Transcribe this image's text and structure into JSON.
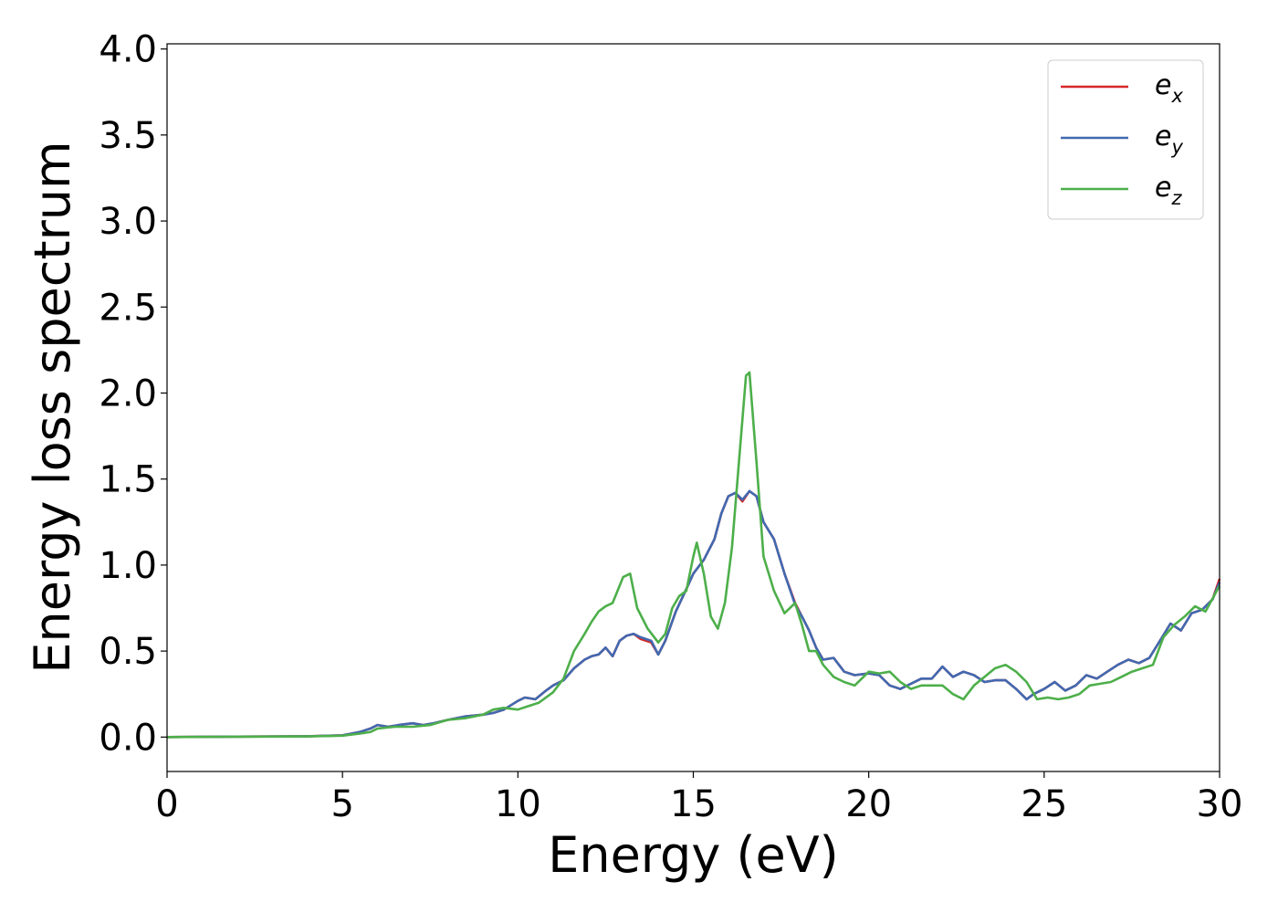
{
  "chart_data": {
    "type": "line",
    "xlabel": "Energy (eV)",
    "ylabel": "Energy loss spectrum",
    "xlim": [
      0,
      30
    ],
    "ylim": [
      -0.2,
      4.03
    ],
    "xticks": [
      "0",
      "5",
      "10",
      "15",
      "20",
      "25",
      "30"
    ],
    "yticks": [
      "0.0",
      "0.5",
      "1.0",
      "1.5",
      "2.0",
      "2.5",
      "3.0",
      "3.5",
      "4.0"
    ],
    "grid": false,
    "legend_position": "top-right",
    "series": [
      {
        "name": "e_x",
        "legend_base": "e",
        "legend_sub": "x",
        "color": "#d62728",
        "x": [
          0,
          2,
          4,
          5,
          5.5,
          5.8,
          6,
          6.3,
          6.6,
          7,
          7.3,
          7.6,
          8,
          8.5,
          9,
          9.3,
          9.6,
          10,
          10.2,
          10.5,
          10.8,
          11,
          11.3,
          11.6,
          11.9,
          12.1,
          12.3,
          12.5,
          12.7,
          12.9,
          13.1,
          13.3,
          13.5,
          13.8,
          14.0,
          14.2,
          14.5,
          14.8,
          15.0,
          15.3,
          15.6,
          15.8,
          16.0,
          16.2,
          16.4,
          16.6,
          16.8,
          17.0,
          17.3,
          17.6,
          17.9,
          18.1,
          18.3,
          18.5,
          18.7,
          19.0,
          19.3,
          19.6,
          20.0,
          20.3,
          20.6,
          20.9,
          21.2,
          21.5,
          21.8,
          22.1,
          22.4,
          22.7,
          23.0,
          23.3,
          23.6,
          23.9,
          24.2,
          24.5,
          24.7,
          25.0,
          25.3,
          25.6,
          25.9,
          26.2,
          26.5,
          26.8,
          27.1,
          27.4,
          27.7,
          28.0,
          28.3,
          28.6,
          28.9,
          29.2,
          29.5,
          29.8,
          30.0
        ],
        "y": [
          0,
          0.003,
          0.005,
          0.01,
          0.03,
          0.05,
          0.07,
          0.06,
          0.07,
          0.08,
          0.07,
          0.08,
          0.1,
          0.12,
          0.13,
          0.14,
          0.16,
          0.21,
          0.23,
          0.22,
          0.27,
          0.3,
          0.33,
          0.4,
          0.45,
          0.47,
          0.48,
          0.52,
          0.47,
          0.56,
          0.59,
          0.6,
          0.57,
          0.55,
          0.48,
          0.56,
          0.73,
          0.86,
          0.95,
          1.03,
          1.15,
          1.3,
          1.4,
          1.42,
          1.37,
          1.43,
          1.4,
          1.25,
          1.15,
          0.95,
          0.78,
          0.7,
          0.62,
          0.52,
          0.45,
          0.46,
          0.38,
          0.36,
          0.37,
          0.36,
          0.3,
          0.28,
          0.31,
          0.34,
          0.34,
          0.41,
          0.35,
          0.38,
          0.36,
          0.32,
          0.33,
          0.33,
          0.28,
          0.22,
          0.25,
          0.28,
          0.32,
          0.27,
          0.3,
          0.36,
          0.34,
          0.38,
          0.42,
          0.45,
          0.43,
          0.46,
          0.56,
          0.66,
          0.62,
          0.72,
          0.74,
          0.8,
          0.92
        ]
      },
      {
        "name": "e_y",
        "legend_base": "e",
        "legend_sub": "y",
        "color": "#4169b0",
        "x": [
          0,
          2,
          4,
          5,
          5.5,
          5.8,
          6,
          6.3,
          6.6,
          7,
          7.3,
          7.6,
          8,
          8.5,
          9,
          9.3,
          9.6,
          10,
          10.2,
          10.5,
          10.8,
          11,
          11.3,
          11.6,
          11.9,
          12.1,
          12.3,
          12.5,
          12.7,
          12.9,
          13.1,
          13.3,
          13.5,
          13.8,
          14.0,
          14.2,
          14.5,
          14.8,
          15.0,
          15.3,
          15.6,
          15.8,
          16.0,
          16.2,
          16.4,
          16.6,
          16.8,
          17.0,
          17.3,
          17.6,
          17.9,
          18.1,
          18.3,
          18.5,
          18.7,
          19.0,
          19.3,
          19.6,
          20.0,
          20.3,
          20.6,
          20.9,
          21.2,
          21.5,
          21.8,
          22.1,
          22.4,
          22.7,
          23.0,
          23.3,
          23.6,
          23.9,
          24.2,
          24.5,
          24.7,
          25.0,
          25.3,
          25.6,
          25.9,
          26.2,
          26.5,
          26.8,
          27.1,
          27.4,
          27.7,
          28.0,
          28.3,
          28.6,
          28.9,
          29.2,
          29.5,
          29.8,
          30.0
        ],
        "y": [
          0,
          0.003,
          0.005,
          0.01,
          0.03,
          0.05,
          0.07,
          0.06,
          0.07,
          0.08,
          0.07,
          0.08,
          0.1,
          0.12,
          0.13,
          0.14,
          0.16,
          0.21,
          0.23,
          0.22,
          0.27,
          0.3,
          0.33,
          0.4,
          0.45,
          0.47,
          0.48,
          0.52,
          0.47,
          0.56,
          0.59,
          0.6,
          0.58,
          0.56,
          0.48,
          0.56,
          0.73,
          0.86,
          0.95,
          1.03,
          1.15,
          1.3,
          1.4,
          1.42,
          1.38,
          1.43,
          1.4,
          1.25,
          1.15,
          0.95,
          0.77,
          0.7,
          0.62,
          0.52,
          0.45,
          0.46,
          0.38,
          0.36,
          0.37,
          0.36,
          0.3,
          0.28,
          0.31,
          0.34,
          0.34,
          0.41,
          0.35,
          0.38,
          0.36,
          0.32,
          0.33,
          0.33,
          0.28,
          0.22,
          0.25,
          0.28,
          0.32,
          0.27,
          0.3,
          0.36,
          0.34,
          0.38,
          0.42,
          0.45,
          0.43,
          0.46,
          0.56,
          0.66,
          0.62,
          0.72,
          0.74,
          0.8,
          0.9
        ]
      },
      {
        "name": "e_z",
        "legend_base": "e",
        "legend_sub": "z",
        "color": "#4daf4a",
        "x": [
          0,
          2,
          4,
          5,
          5.5,
          5.8,
          6,
          6.5,
          7,
          7.5,
          8,
          8.5,
          9,
          9.3,
          9.6,
          10,
          10.3,
          10.6,
          11,
          11.3,
          11.6,
          11.9,
          12.1,
          12.3,
          12.5,
          12.7,
          12.9,
          13.0,
          13.2,
          13.4,
          13.7,
          14.0,
          14.2,
          14.4,
          14.6,
          14.8,
          15.0,
          15.1,
          15.3,
          15.5,
          15.7,
          15.9,
          16.1,
          16.3,
          16.5,
          16.6,
          16.8,
          17.0,
          17.3,
          17.6,
          17.9,
          18.1,
          18.3,
          18.5,
          18.7,
          19.0,
          19.3,
          19.6,
          20.0,
          20.3,
          20.6,
          20.9,
          21.2,
          21.5,
          21.8,
          22.1,
          22.4,
          22.7,
          23.0,
          23.3,
          23.6,
          23.9,
          24.2,
          24.5,
          24.8,
          25.1,
          25.4,
          25.7,
          26.0,
          26.3,
          26.6,
          26.9,
          27.2,
          27.5,
          27.8,
          28.1,
          28.4,
          28.7,
          29.0,
          29.3,
          29.6,
          30.0
        ],
        "y": [
          0,
          0.002,
          0.004,
          0.008,
          0.02,
          0.03,
          0.05,
          0.06,
          0.06,
          0.07,
          0.1,
          0.11,
          0.13,
          0.16,
          0.17,
          0.16,
          0.18,
          0.2,
          0.26,
          0.34,
          0.5,
          0.6,
          0.67,
          0.73,
          0.76,
          0.78,
          0.88,
          0.93,
          0.95,
          0.75,
          0.63,
          0.55,
          0.6,
          0.75,
          0.82,
          0.85,
          1.05,
          1.13,
          0.95,
          0.7,
          0.63,
          0.78,
          1.1,
          1.6,
          2.1,
          2.12,
          1.6,
          1.05,
          0.85,
          0.72,
          0.78,
          0.65,
          0.5,
          0.5,
          0.42,
          0.35,
          0.32,
          0.3,
          0.38,
          0.37,
          0.38,
          0.32,
          0.28,
          0.3,
          0.3,
          0.3,
          0.25,
          0.22,
          0.3,
          0.35,
          0.4,
          0.42,
          0.38,
          0.32,
          0.22,
          0.23,
          0.22,
          0.23,
          0.25,
          0.3,
          0.31,
          0.32,
          0.35,
          0.38,
          0.4,
          0.42,
          0.58,
          0.65,
          0.7,
          0.76,
          0.73,
          0.88
        ]
      }
    ]
  }
}
